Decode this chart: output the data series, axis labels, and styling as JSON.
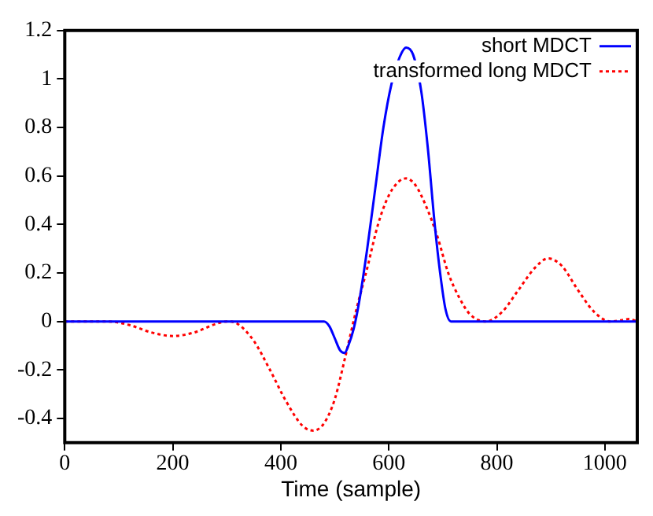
{
  "chart_data": {
    "type": "line",
    "xlabel": "Time (sample)",
    "xlim": [
      0,
      1060
    ],
    "xticks": [
      0,
      200,
      400,
      600,
      800,
      1000
    ],
    "ylim": [
      -0.5,
      1.2
    ],
    "yticks": [
      -0.4,
      -0.2,
      0,
      0.2,
      0.4,
      0.6,
      0.8,
      1,
      1.2
    ],
    "grid": false,
    "legend": "top right",
    "marker": "none",
    "series": [
      {
        "name": "short MDCT",
        "color": "#0000ff",
        "line_style": "solid",
        "x": [
          0,
          480,
          490,
          500,
          510,
          518,
          525,
          535,
          545,
          560,
          575,
          590,
          605,
          620,
          632,
          645,
          660,
          672,
          685,
          695,
          705,
          715,
          1060
        ],
        "values": [
          0,
          0,
          -0.02,
          -0.07,
          -0.12,
          -0.13,
          -0.1,
          -0.03,
          0.08,
          0.3,
          0.55,
          0.8,
          0.98,
          1.09,
          1.13,
          1.1,
          0.95,
          0.72,
          0.4,
          0.2,
          0.05,
          0,
          0
        ]
      },
      {
        "name": "transformed long MDCT",
        "color": "#ff0000",
        "line_style": "dotted",
        "x": [
          0,
          80,
          120,
          160,
          200,
          240,
          280,
          300,
          320,
          350,
          380,
          410,
          440,
          460,
          480,
          500,
          520,
          540,
          560,
          580,
          600,
          620,
          632,
          650,
          670,
          690,
          710,
          730,
          750,
          780,
          810,
          840,
          870,
          895,
          920,
          950,
          980,
          1010,
          1030,
          1045,
          1060
        ],
        "values": [
          0,
          0,
          -0.015,
          -0.045,
          -0.06,
          -0.045,
          -0.01,
          0,
          -0.01,
          -0.08,
          -0.2,
          -0.33,
          -0.43,
          -0.45,
          -0.42,
          -0.32,
          -0.14,
          0.05,
          0.22,
          0.4,
          0.52,
          0.58,
          0.59,
          0.56,
          0.47,
          0.35,
          0.2,
          0.1,
          0.03,
          0,
          0.04,
          0.13,
          0.22,
          0.26,
          0.23,
          0.13,
          0.04,
          0,
          0.005,
          0.01,
          0
        ]
      }
    ]
  }
}
